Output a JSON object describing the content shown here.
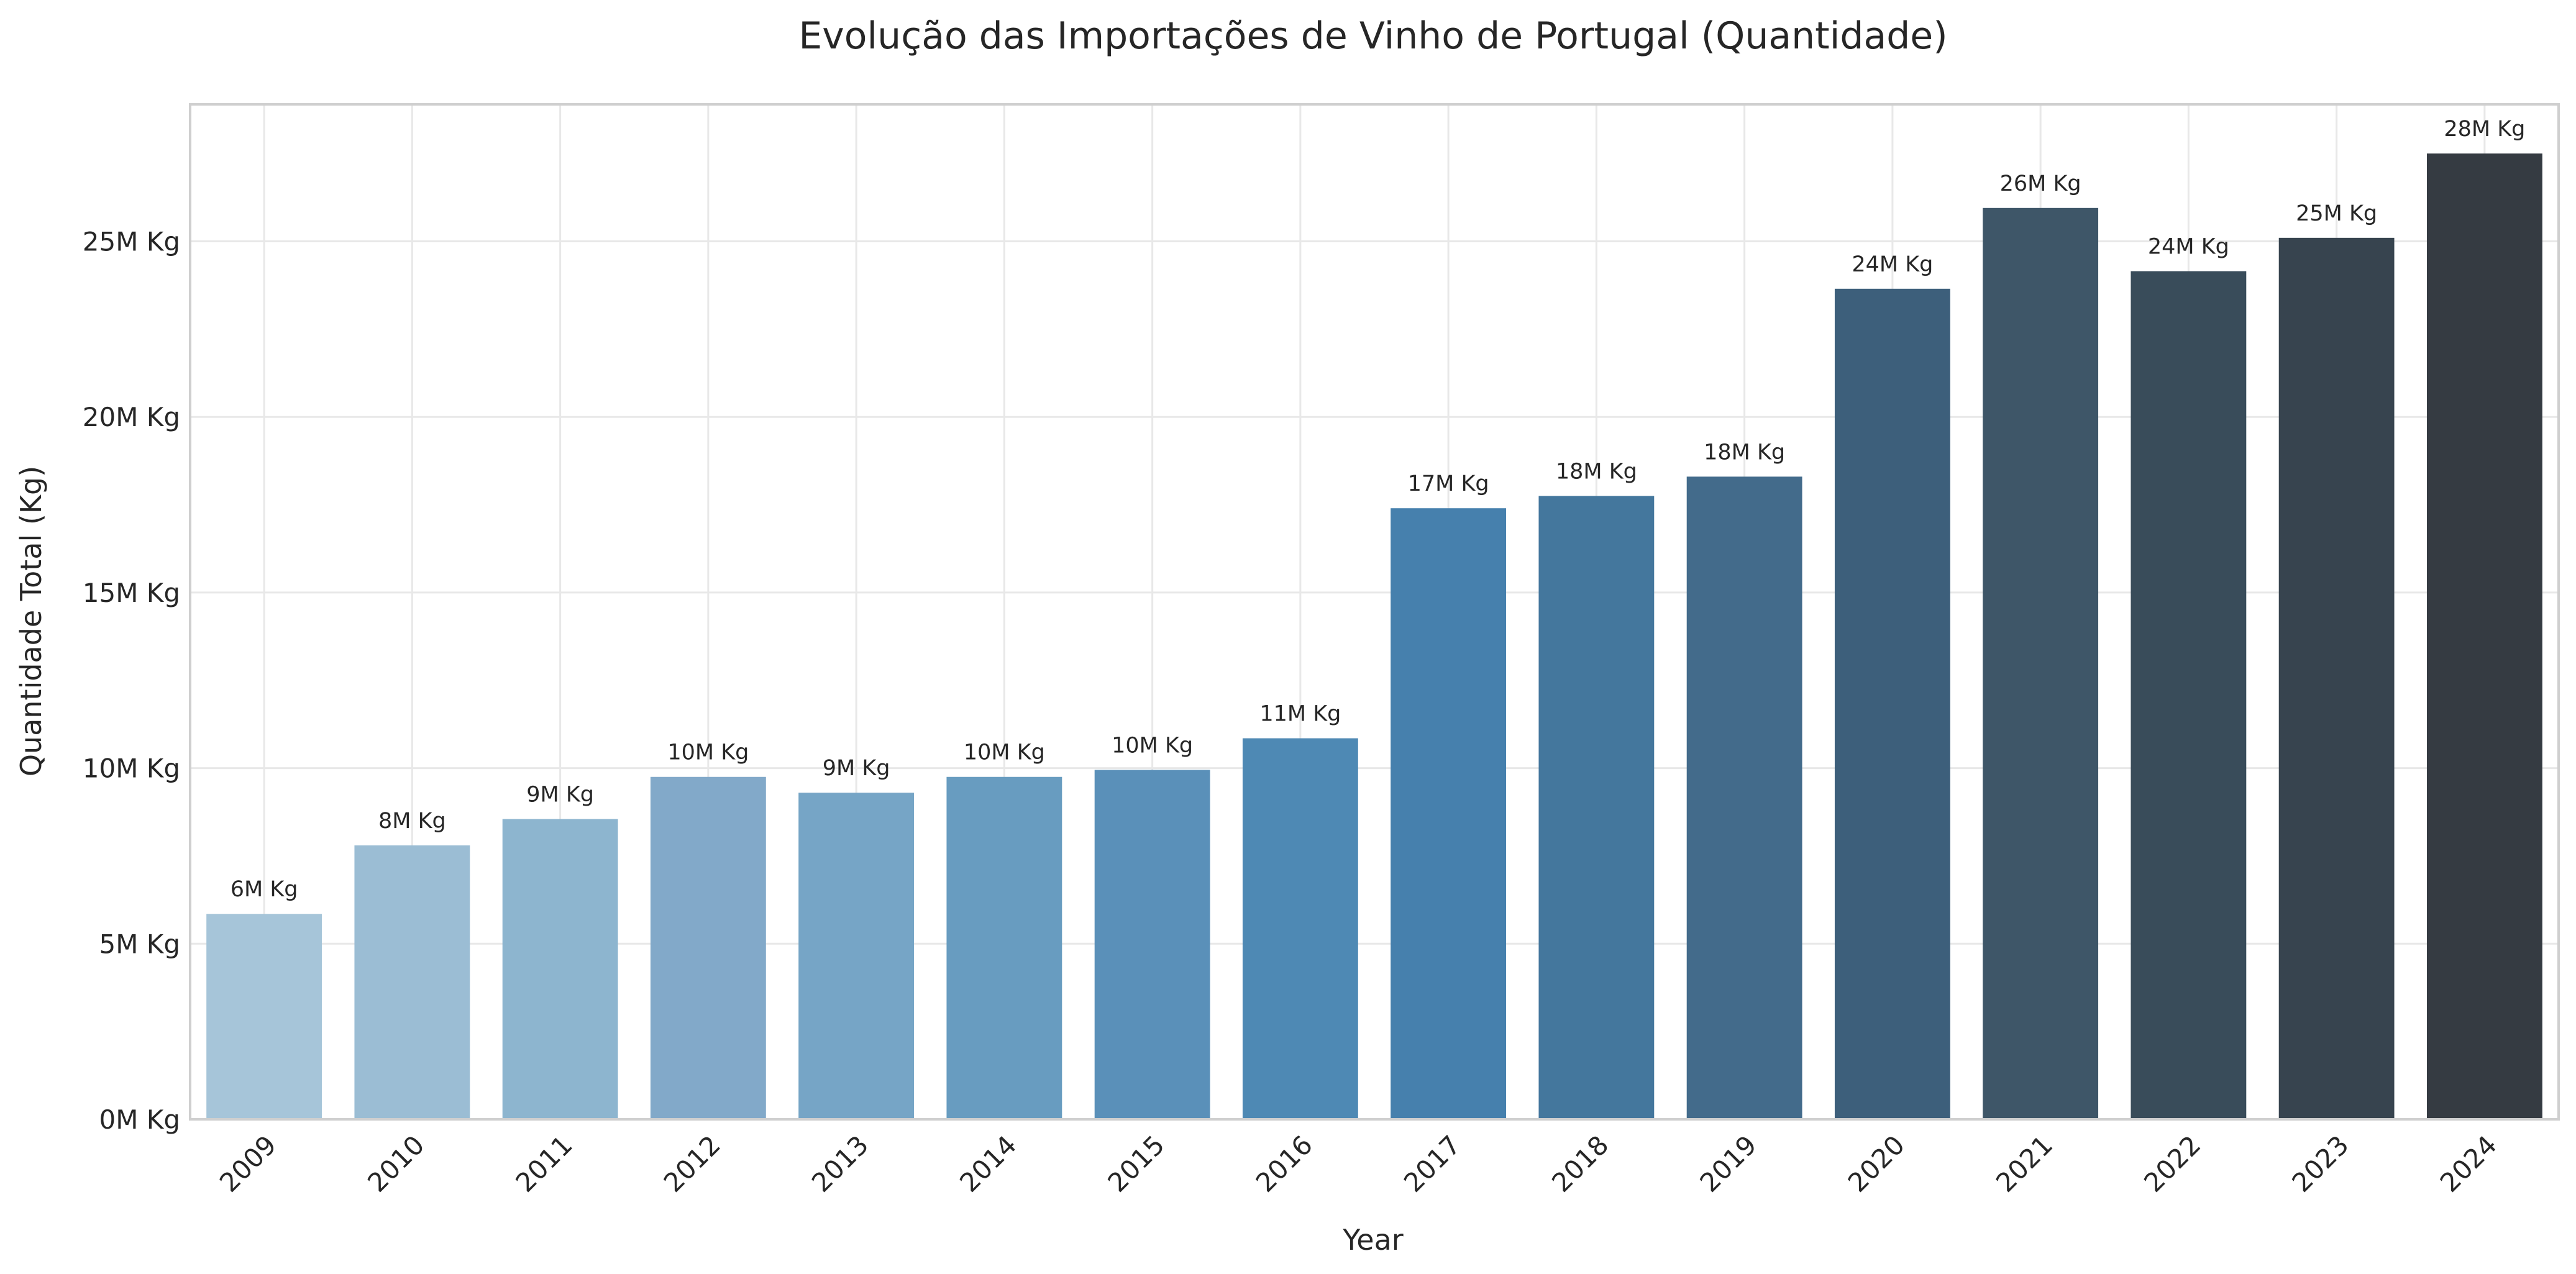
{
  "chart_data": {
    "type": "bar",
    "title": "Evolução das Importações de Vinho de Portugal (Quantidade)",
    "xlabel": "Year",
    "ylabel": "Quantidade Total (Kg)",
    "categories": [
      "2009",
      "2010",
      "2011",
      "2012",
      "2013",
      "2014",
      "2015",
      "2016",
      "2017",
      "2018",
      "2019",
      "2020",
      "2021",
      "2022",
      "2023",
      "2024"
    ],
    "values": [
      5.85,
      7.8,
      8.55,
      9.75,
      9.3,
      9.75,
      9.95,
      10.85,
      17.4,
      17.75,
      18.3,
      23.65,
      25.95,
      24.15,
      25.1,
      27.5
    ],
    "data_labels": [
      "6M Kg",
      "8M Kg",
      "9M Kg",
      "10M Kg",
      "9M Kg",
      "10M Kg",
      "10M Kg",
      "11M Kg",
      "17M Kg",
      "18M Kg",
      "18M Kg",
      "24M Kg",
      "26M Kg",
      "24M Kg",
      "25M Kg",
      "28M Kg"
    ],
    "value_unit": "million Kg",
    "yticks": [
      0,
      5,
      10,
      15,
      20,
      25
    ],
    "ytick_labels": [
      "0M Kg",
      "5M Kg",
      "10M Kg",
      "15M Kg",
      "20M Kg",
      "25M Kg"
    ],
    "ylim": [
      0,
      28.9
    ],
    "grid": true,
    "colors": [
      "#a6c5d9",
      "#9bbdd4",
      "#8db5cf",
      "#82a9c9",
      "#76a5c6",
      "#689cc0",
      "#5a90b9",
      "#4e89b4",
      "#4680ad",
      "#44779d",
      "#436b8b",
      "#3d5f7b",
      "#3e5668",
      "#394c5a",
      "#37444f",
      "#353b42"
    ]
  }
}
